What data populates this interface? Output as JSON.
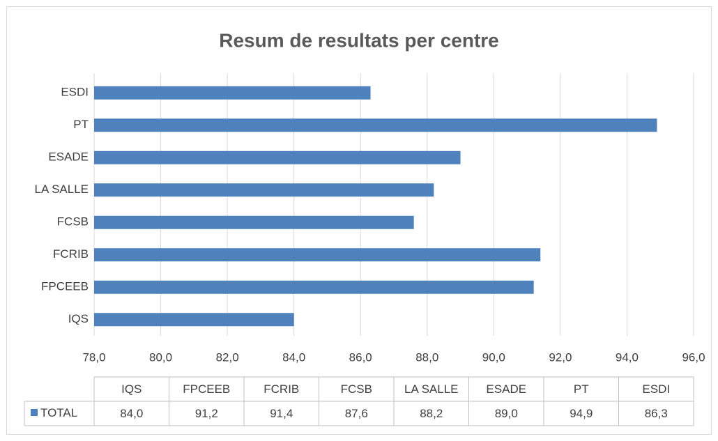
{
  "chart_data": {
    "type": "barh",
    "title": "Resum de resultats per centre",
    "categories": [
      "IQS",
      "FPCEEB",
      "FCRIB",
      "FCSB",
      "LA SALLE",
      "ESADE",
      "PT",
      "ESDI"
    ],
    "series": [
      {
        "name": "TOTAL",
        "color": "#4f81bd",
        "values": [
          84.0,
          91.2,
          91.4,
          87.6,
          88.2,
          89.0,
          94.9,
          86.3
        ],
        "value_labels": [
          "84,0",
          "91,2",
          "91,4",
          "87,6",
          "88,2",
          "89,0",
          "94,9",
          "86,3"
        ]
      }
    ],
    "xlim": [
      78,
      96
    ],
    "xticks": [
      {
        "value": 78,
        "label": "78,0"
      },
      {
        "value": 80,
        "label": "80,0"
      },
      {
        "value": 82,
        "label": "82,0"
      },
      {
        "value": 84,
        "label": "84,0"
      },
      {
        "value": 86,
        "label": "86,0"
      },
      {
        "value": 88,
        "label": "88,0"
      },
      {
        "value": 90,
        "label": "90,0"
      },
      {
        "value": 92,
        "label": "92,0"
      },
      {
        "value": 94,
        "label": "94,0"
      },
      {
        "value": 96,
        "label": "96,0"
      }
    ],
    "grid": true
  }
}
